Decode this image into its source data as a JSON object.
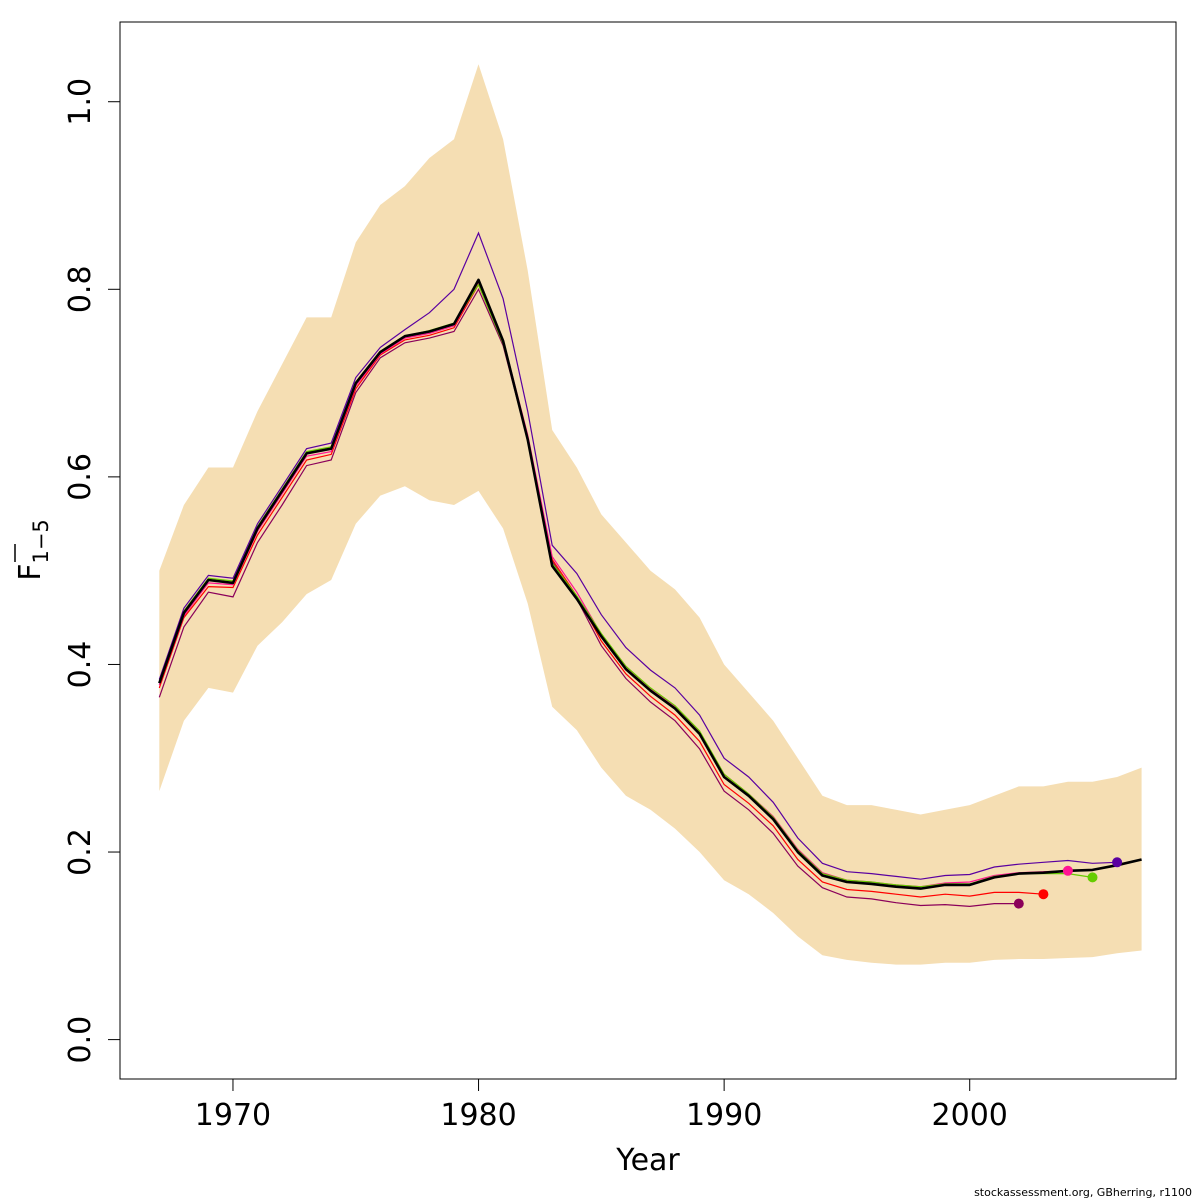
{
  "chart_data": {
    "type": "line",
    "title": "",
    "xlabel": "Year",
    "ylabel": {
      "symbol": "F",
      "subscript": "1−5"
    },
    "xlim": [
      1965.4,
      2008.4
    ],
    "ylim": [
      -0.042,
      1.085
    ],
    "x_ticks": [
      1970,
      1980,
      1990,
      2000
    ],
    "y_ticks": [
      0.0,
      0.2,
      0.4,
      0.6,
      0.8,
      1.0
    ],
    "x_tick_labels": [
      "1970",
      "1980",
      "1990",
      "2000"
    ],
    "y_tick_labels": [
      "0.0",
      "0.2",
      "0.4",
      "0.6",
      "0.8",
      "1.0"
    ],
    "grid": false,
    "legend": "none",
    "colors": {
      "band": "#f5deb3",
      "main": "#000000",
      "retro": [
        "#8b005a",
        "#ff0000",
        "#ff1493",
        "#66cc00",
        "#5a00a0"
      ]
    },
    "confidence_band": {
      "x": [
        1967,
        1968,
        1969,
        1970,
        1971,
        1972,
        1973,
        1974,
        1975,
        1976,
        1977,
        1978,
        1979,
        1980,
        1981,
        1982,
        1983,
        1984,
        1985,
        1986,
        1987,
        1988,
        1989,
        1990,
        1991,
        1992,
        1993,
        1994,
        1995,
        1996,
        1997,
        1998,
        1999,
        2000,
        2001,
        2002,
        2003,
        2004,
        2005,
        2006,
        2007
      ],
      "upper": [
        0.5,
        0.57,
        0.61,
        0.61,
        0.67,
        0.72,
        0.77,
        0.77,
        0.85,
        0.89,
        0.91,
        0.94,
        0.96,
        1.04,
        0.96,
        0.82,
        0.65,
        0.61,
        0.56,
        0.53,
        0.5,
        0.48,
        0.45,
        0.4,
        0.37,
        0.34,
        0.3,
        0.26,
        0.25,
        0.25,
        0.245,
        0.24,
        0.245,
        0.25,
        0.26,
        0.27,
        0.27,
        0.275,
        0.275,
        0.28,
        0.29
      ],
      "lower": [
        0.265,
        0.34,
        0.375,
        0.37,
        0.42,
        0.445,
        0.475,
        0.49,
        0.55,
        0.58,
        0.59,
        0.575,
        0.57,
        0.585,
        0.545,
        0.465,
        0.355,
        0.33,
        0.29,
        0.26,
        0.245,
        0.225,
        0.2,
        0.17,
        0.155,
        0.135,
        0.11,
        0.09,
        0.085,
        0.082,
        0.08,
        0.08,
        0.082,
        0.082,
        0.085,
        0.086,
        0.086,
        0.087,
        0.088,
        0.092,
        0.095
      ]
    },
    "series": [
      {
        "x": [
          1967,
          1968,
          1969,
          1970,
          1971,
          1972,
          1973,
          1974,
          1975,
          1976,
          1977,
          1978,
          1979,
          1980,
          1981,
          1982,
          1983,
          1984,
          1985,
          1986,
          1987,
          1988,
          1989,
          1990,
          1991,
          1992,
          1993,
          1994,
          1995,
          1996,
          1997,
          1998,
          1999,
          2000,
          2001,
          2002,
          2003,
          2004,
          2005,
          2006,
          2007
        ],
        "values": [
          0.38,
          0.455,
          0.49,
          0.487,
          0.545,
          0.585,
          0.625,
          0.63,
          0.7,
          0.733,
          0.75,
          0.755,
          0.763,
          0.81,
          0.745,
          0.64,
          0.505,
          0.47,
          0.43,
          0.395,
          0.372,
          0.353,
          0.326,
          0.28,
          0.26,
          0.235,
          0.2,
          0.175,
          0.168,
          0.166,
          0.163,
          0.161,
          0.165,
          0.165,
          0.173,
          0.177,
          0.178,
          0.18,
          0.181,
          0.186,
          0.192
        ],
        "role": "main"
      },
      {
        "x": [
          1967,
          1968,
          1969,
          1970,
          1971,
          1972,
          1973,
          1974,
          1975,
          1976,
          1977,
          1978,
          1979,
          1980,
          1981,
          1982,
          1983,
          1984,
          1985,
          1986,
          1987,
          1988,
          1989,
          1990,
          1991,
          1992,
          1993,
          1994,
          1995,
          1996,
          1997,
          1998,
          1999,
          2000,
          2001,
          2002
        ],
        "values": [
          0.365,
          0.44,
          0.477,
          0.472,
          0.53,
          0.57,
          0.612,
          0.618,
          0.69,
          0.727,
          0.743,
          0.748,
          0.755,
          0.8,
          0.74,
          0.64,
          0.51,
          0.47,
          0.42,
          0.385,
          0.36,
          0.34,
          0.31,
          0.265,
          0.245,
          0.22,
          0.185,
          0.162,
          0.152,
          0.15,
          0.146,
          0.143,
          0.144,
          0.142,
          0.145,
          0.145
        ],
        "retro_year": 2002
      },
      {
        "x": [
          1967,
          1968,
          1969,
          1970,
          1971,
          1972,
          1973,
          1974,
          1975,
          1976,
          1977,
          1978,
          1979,
          1980,
          1981,
          1982,
          1983,
          1984,
          1985,
          1986,
          1987,
          1988,
          1989,
          1990,
          1991,
          1992,
          1993,
          1994,
          1995,
          1996,
          1997,
          1998,
          1999,
          2000,
          2001,
          2002,
          2003
        ],
        "values": [
          0.375,
          0.45,
          0.483,
          0.482,
          0.538,
          0.578,
          0.618,
          0.624,
          0.694,
          0.73,
          0.746,
          0.751,
          0.759,
          0.805,
          0.743,
          0.642,
          0.512,
          0.473,
          0.425,
          0.39,
          0.366,
          0.346,
          0.318,
          0.272,
          0.252,
          0.228,
          0.192,
          0.168,
          0.16,
          0.158,
          0.155,
          0.152,
          0.155,
          0.153,
          0.157,
          0.157,
          0.155
        ],
        "retro_year": 2003
      },
      {
        "x": [
          1967,
          1968,
          1969,
          1970,
          1971,
          1972,
          1973,
          1974,
          1975,
          1976,
          1977,
          1978,
          1979,
          1980,
          1981,
          1982,
          1983,
          1984,
          1985,
          1986,
          1987,
          1988,
          1989,
          1990,
          1991,
          1992,
          1993,
          1994,
          1995,
          1996,
          1997,
          1998,
          1999,
          2000,
          2001,
          2002,
          2003,
          2004
        ],
        "values": [
          0.378,
          0.452,
          0.487,
          0.485,
          0.542,
          0.582,
          0.622,
          0.627,
          0.697,
          0.731,
          0.748,
          0.753,
          0.761,
          0.807,
          0.746,
          0.645,
          0.515,
          0.477,
          0.432,
          0.398,
          0.374,
          0.355,
          0.328,
          0.283,
          0.262,
          0.238,
          0.203,
          0.178,
          0.17,
          0.168,
          0.165,
          0.163,
          0.167,
          0.168,
          0.175,
          0.178,
          0.179,
          0.18
        ],
        "retro_year": 2004
      },
      {
        "x": [
          1967,
          1968,
          1969,
          1970,
          1971,
          1972,
          1973,
          1974,
          1975,
          1976,
          1977,
          1978,
          1979,
          1980,
          1981,
          1982,
          1983,
          1984,
          1985,
          1986,
          1987,
          1988,
          1989,
          1990,
          1991,
          1992,
          1993,
          1994,
          1995,
          1996,
          1997,
          1998,
          1999,
          2000,
          2001,
          2002,
          2003,
          2004,
          2005
        ],
        "values": [
          0.382,
          0.457,
          0.492,
          0.489,
          0.547,
          0.587,
          0.627,
          0.632,
          0.701,
          0.734,
          0.75,
          0.756,
          0.764,
          0.805,
          0.742,
          0.642,
          0.508,
          0.473,
          0.433,
          0.398,
          0.375,
          0.356,
          0.329,
          0.283,
          0.262,
          0.237,
          0.202,
          0.177,
          0.17,
          0.168,
          0.165,
          0.163,
          0.166,
          0.166,
          0.174,
          0.177,
          0.177,
          0.177,
          0.173
        ],
        "retro_year": 2005
      },
      {
        "x": [
          1967,
          1968,
          1969,
          1970,
          1971,
          1972,
          1973,
          1974,
          1975,
          1976,
          1977,
          1978,
          1979,
          1980,
          1981,
          1982,
          1983,
          1984,
          1985,
          1986,
          1987,
          1988,
          1989,
          1990,
          1991,
          1992,
          1993,
          1994,
          1995,
          1996,
          1997,
          1998,
          1999,
          2000,
          2001,
          2002,
          2003,
          2004,
          2005,
          2006
        ],
        "values": [
          0.384,
          0.46,
          0.495,
          0.492,
          0.55,
          0.59,
          0.63,
          0.636,
          0.706,
          0.738,
          0.757,
          0.775,
          0.8,
          0.86,
          0.79,
          0.67,
          0.527,
          0.497,
          0.453,
          0.418,
          0.394,
          0.375,
          0.346,
          0.3,
          0.28,
          0.253,
          0.215,
          0.188,
          0.179,
          0.177,
          0.174,
          0.171,
          0.175,
          0.176,
          0.184,
          0.187,
          0.189,
          0.191,
          0.188,
          0.189
        ],
        "retro_year": 2006
      }
    ]
  },
  "footer": {
    "credit": "stockassessment.org, GBherring, r1100"
  }
}
